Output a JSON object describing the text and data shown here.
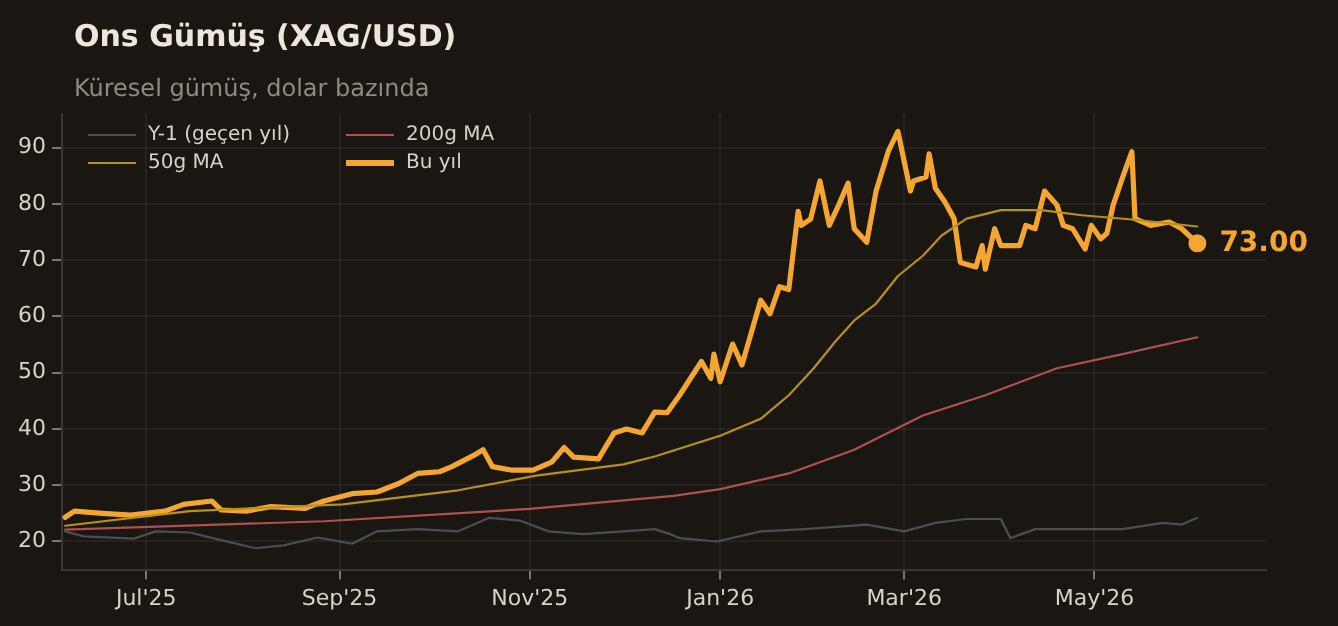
{
  "chart_data": {
    "type": "line",
    "title": "Ons Gümüş (XAG/USD)",
    "subtitle": "Küresel gümüş, dolar bazında",
    "xlim": [
      "2025-06-04",
      "2026-06-25"
    ],
    "xticks": [
      {
        "value": "2025-07-01",
        "label": "Jul'25"
      },
      {
        "value": "2025-09-01",
        "label": "Sep'25"
      },
      {
        "value": "2025-11-01",
        "label": "Nov'25"
      },
      {
        "value": "2026-01-01",
        "label": "Jan'26"
      },
      {
        "value": "2026-03-01",
        "label": "Mar'26"
      },
      {
        "value": "2026-05-01",
        "label": "May'26"
      }
    ],
    "ylim": [
      15,
      96
    ],
    "yticks": [
      20,
      30,
      40,
      50,
      60,
      70,
      80,
      90
    ],
    "grid": true,
    "legend": "top left",
    "marker": "none",
    "line_style": "solid",
    "annotations": [
      {
        "text": "73.00",
        "x": "2026-06-03",
        "y": 73
      }
    ],
    "series": [
      {
        "name": "Y-1 (geçen yıl)",
        "color": "#4a4d52",
        "x": [
          "2025-06-05",
          "2025-06-11",
          "2025-06-27",
          "2025-07-04",
          "2025-07-15",
          "2025-07-23",
          "2025-08-05",
          "2025-08-14",
          "2025-08-25",
          "2025-09-05",
          "2025-09-13",
          "2025-09-26",
          "2025-10-09",
          "2025-10-19",
          "2025-10-29",
          "2025-11-07",
          "2025-11-18",
          "2025-12-01",
          "2025-12-11",
          "2025-12-16",
          "2025-12-19",
          "2025-12-31",
          "2026-01-14",
          "2026-01-28",
          "2026-02-17",
          "2026-03-01",
          "2026-03-11",
          "2026-03-21",
          "2026-04-01",
          "2026-04-04",
          "2026-04-12",
          "2026-04-27",
          "2026-05-10",
          "2026-05-23",
          "2026-05-29",
          "2026-06-03"
        ],
        "values": [
          21.8,
          20.9,
          20.5,
          21.8,
          21.6,
          20.5,
          18.8,
          19.3,
          20.7,
          19.6,
          21.8,
          22.2,
          21.8,
          24.2,
          23.7,
          21.8,
          21.3,
          21.8,
          22.2,
          21.3,
          20.6,
          20,
          21.8,
          22.2,
          23,
          21.8,
          23.3,
          24,
          24,
          20.6,
          22.2,
          22.2,
          22.2,
          23.3,
          23,
          24.2
        ]
      },
      {
        "name": "50g MA",
        "color": "#b8901f",
        "x": [
          "2025-06-05",
          "2025-07-15",
          "2025-09-02",
          "2025-10-09",
          "2025-11-03",
          "2025-12-01",
          "2025-12-11",
          "2026-01-01",
          "2026-01-14",
          "2026-01-23",
          "2026-01-31",
          "2026-02-07",
          "2026-02-13",
          "2026-02-20",
          "2026-02-27",
          "2026-03-07",
          "2026-03-13",
          "2026-03-21",
          "2026-04-01",
          "2026-04-14",
          "2026-04-27",
          "2026-05-14",
          "2026-06-03"
        ],
        "values": [
          22.8,
          25.4,
          26.6,
          29.1,
          31.7,
          33.7,
          35.1,
          38.8,
          41.8,
          46,
          50.8,
          55.6,
          59.3,
          62.3,
          67.2,
          70.8,
          74.4,
          77.4,
          78.9,
          78.9,
          78,
          77.2,
          76
        ]
      },
      {
        "name": "200g MA",
        "color": "#b05050",
        "x": [
          "2025-06-05",
          "2025-08-27",
          "2025-11-01",
          "2025-12-17",
          "2026-01-01",
          "2026-01-23",
          "2026-02-13",
          "2026-03-07",
          "2026-03-27",
          "2026-04-19",
          "2026-05-10",
          "2026-06-03"
        ],
        "values": [
          22.1,
          23.6,
          25.8,
          28.1,
          29.3,
          32.1,
          36.3,
          42.4,
          46,
          50.8,
          53.3,
          56.3
        ]
      },
      {
        "name": "Bu yıl",
        "color": "#f5a630",
        "x": [
          "2025-06-05",
          "2025-06-08",
          "2025-06-17",
          "2025-06-26",
          "2025-07-07",
          "2025-07-13",
          "2025-07-22",
          "2025-07-25",
          "2025-08-02",
          "2025-08-10",
          "2025-08-21",
          "2025-08-27",
          "2025-09-05",
          "2025-09-13",
          "2025-09-20",
          "2025-09-26",
          "2025-10-03",
          "2025-10-07",
          "2025-10-14",
          "2025-10-17",
          "2025-10-20",
          "2025-10-26",
          "2025-11-02",
          "2025-11-08",
          "2025-11-12",
          "2025-11-15",
          "2025-11-23",
          "2025-11-28",
          "2025-12-02",
          "2025-12-07",
          "2025-12-11",
          "2025-12-15",
          "2025-12-19",
          "2025-12-26",
          "2025-12-29",
          "2025-12-30",
          "2026-01-01",
          "2026-01-05",
          "2026-01-08",
          "2026-01-14",
          "2026-01-17",
          "2026-01-20",
          "2026-01-23",
          "2026-01-26",
          "2026-01-27",
          "2026-01-30",
          "2026-02-02",
          "2026-02-05",
          "2026-02-08",
          "2026-02-11",
          "2026-02-13",
          "2026-02-17",
          "2026-02-20",
          "2026-02-24",
          "2026-02-27",
          "2026-03-03",
          "2026-03-04",
          "2026-03-08",
          "2026-03-09",
          "2026-03-11",
          "2026-03-14",
          "2026-03-17",
          "2026-03-19",
          "2026-03-24",
          "2026-03-26",
          "2026-03-27",
          "2026-03-30",
          "2026-04-01",
          "2026-04-07",
          "2026-04-09",
          "2026-04-12",
          "2026-04-15",
          "2026-04-19",
          "2026-04-21",
          "2026-04-24",
          "2026-04-28",
          "2026-04-30",
          "2026-05-03",
          "2026-05-05",
          "2026-05-07",
          "2026-05-10",
          "2026-05-13",
          "2026-05-14",
          "2026-05-19",
          "2026-05-25",
          "2026-05-29",
          "2026-06-03"
        ],
        "values": [
          24.3,
          25.4,
          25,
          24.7,
          25.4,
          26.6,
          27.2,
          25.6,
          25.4,
          26.2,
          25.9,
          27.2,
          28.5,
          28.8,
          30.3,
          32.1,
          32.4,
          33.3,
          35.3,
          36.3,
          33.3,
          32.7,
          32.7,
          34.1,
          36.7,
          35,
          34.7,
          39.3,
          40,
          39.3,
          43,
          42.9,
          46,
          52,
          49,
          53.3,
          48.4,
          55.1,
          51.4,
          62.9,
          60.5,
          65.3,
          64.8,
          78.7,
          76.2,
          77.3,
          84.1,
          76.2,
          79.8,
          83.7,
          75.6,
          73.2,
          82.3,
          89.5,
          92.9,
          82.3,
          84.1,
          84.8,
          88.9,
          82.8,
          80.4,
          77.4,
          69.6,
          68.8,
          72.6,
          68.4,
          75.6,
          72.6,
          72.6,
          76.2,
          75.6,
          82.3,
          79.8,
          76.2,
          75.6,
          72,
          76.2,
          73.8,
          74.8,
          79.8,
          84.7,
          89.3,
          77.4,
          76.2,
          76.8,
          75.6,
          73
        ]
      }
    ]
  }
}
